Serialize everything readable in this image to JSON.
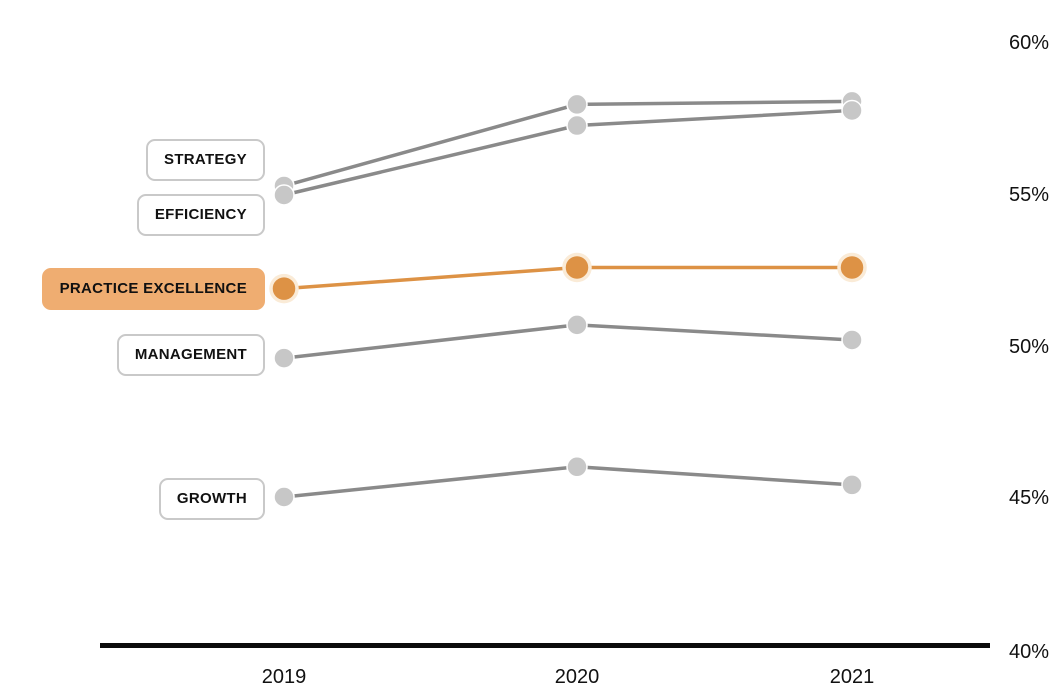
{
  "chart_data": {
    "type": "line",
    "categories": [
      "2019",
      "2020",
      "2021"
    ],
    "series": [
      {
        "name": "STRATEGY",
        "values": [
          55.3,
          58.0,
          58.1
        ],
        "highlighted": false
      },
      {
        "name": "EFFICIENCY",
        "values": [
          55.0,
          57.3,
          57.8
        ],
        "highlighted": false
      },
      {
        "name": "PRACTICE EXCELLENCE",
        "values": [
          51.9,
          52.6,
          52.6
        ],
        "highlighted": true
      },
      {
        "name": "MANAGEMENT",
        "values": [
          49.6,
          50.7,
          50.2
        ],
        "highlighted": false
      },
      {
        "name": "GROWTH",
        "values": [
          45.0,
          46.0,
          45.4
        ],
        "highlighted": false
      }
    ],
    "yticks": [
      "60%",
      "55%",
      "50%",
      "45%",
      "40%"
    ],
    "ylim": [
      40,
      60
    ],
    "title": "",
    "xlabel": "",
    "ylabel": "",
    "grid": false,
    "legend_position": "left-boxed-labels",
    "colors": {
      "highlight_line": "#dd9245",
      "highlight_marker": "#dd9245",
      "highlight_marker_ring": "#faebd7",
      "highlight_label_bg": "#efad71",
      "gray_line": "#8a8a8a",
      "gray_marker": "#c7c7c7",
      "marker_outline": "#ffffff",
      "label_border": "#c9c9c9",
      "label_bg": "#ffffff",
      "axis": "#0b0b0b",
      "text": "#111111"
    }
  }
}
